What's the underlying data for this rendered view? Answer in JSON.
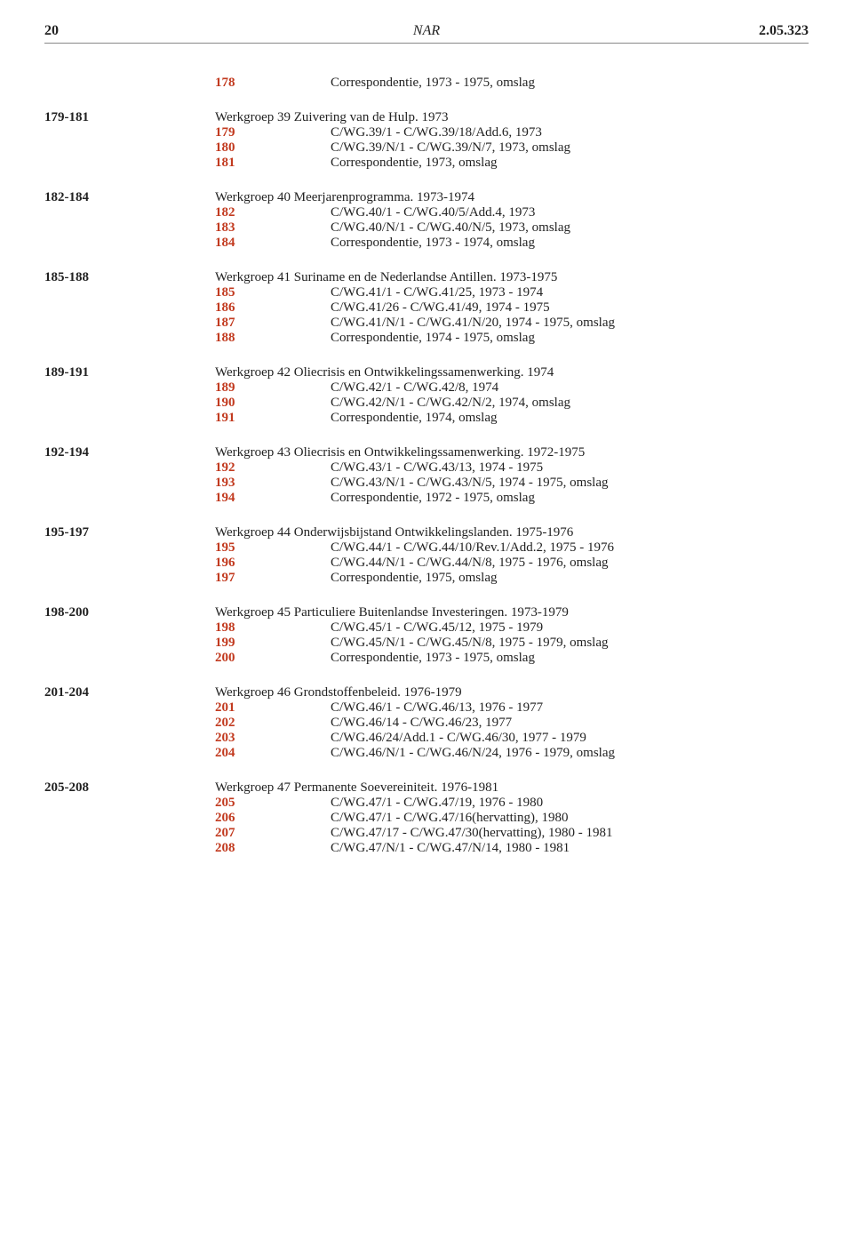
{
  "header": {
    "page_number": "20",
    "center": "NAR",
    "code": "2.05.323"
  },
  "standalone": {
    "num": "178",
    "desc": "Correspondentie, 1973 - 1975, omslag"
  },
  "groups": [
    {
      "range": "179-181",
      "title": "Werkgroep 39 Zuivering van de Hulp. 1973",
      "items": [
        {
          "num": "179",
          "desc": "C/WG.39/1 - C/WG.39/18/Add.6, 1973"
        },
        {
          "num": "180",
          "desc": "C/WG.39/N/1 - C/WG.39/N/7, 1973, omslag"
        },
        {
          "num": "181",
          "desc": "Correspondentie, 1973, omslag"
        }
      ]
    },
    {
      "range": "182-184",
      "title": "Werkgroep 40 Meerjarenprogramma. 1973-1974",
      "items": [
        {
          "num": "182",
          "desc": "C/WG.40/1 - C/WG.40/5/Add.4, 1973"
        },
        {
          "num": "183",
          "desc": "C/WG.40/N/1 - C/WG.40/N/5, 1973, omslag"
        },
        {
          "num": "184",
          "desc": "Correspondentie, 1973 - 1974, omslag"
        }
      ]
    },
    {
      "range": "185-188",
      "title": "Werkgroep 41 Suriname en de Nederlandse Antillen. 1973-1975",
      "items": [
        {
          "num": "185",
          "desc": "C/WG.41/1 - C/WG.41/25, 1973 - 1974"
        },
        {
          "num": "186",
          "desc": "C/WG.41/26 - C/WG.41/49, 1974 - 1975"
        },
        {
          "num": "187",
          "desc": "C/WG.41/N/1 - C/WG.41/N/20, 1974 - 1975, omslag"
        },
        {
          "num": "188",
          "desc": "Correspondentie, 1974 - 1975, omslag"
        }
      ]
    },
    {
      "range": "189-191",
      "title": "Werkgroep 42 Oliecrisis en Ontwikkelingssamenwerking. 1974",
      "items": [
        {
          "num": "189",
          "desc": "C/WG.42/1 - C/WG.42/8, 1974"
        },
        {
          "num": "190",
          "desc": "C/WG.42/N/1 - C/WG.42/N/2, 1974, omslag"
        },
        {
          "num": "191",
          "desc": "Correspondentie, 1974, omslag"
        }
      ]
    },
    {
      "range": "192-194",
      "title": "Werkgroep 43 Oliecrisis en Ontwikkelingssamenwerking. 1972-1975",
      "items": [
        {
          "num": "192",
          "desc": "C/WG.43/1 - C/WG.43/13, 1974 - 1975"
        },
        {
          "num": "193",
          "desc": "C/WG.43/N/1 - C/WG.43/N/5, 1974 - 1975, omslag"
        },
        {
          "num": "194",
          "desc": "Correspondentie, 1972 - 1975, omslag"
        }
      ]
    },
    {
      "range": "195-197",
      "title": "Werkgroep 44 Onderwijsbijstand Ontwikkelingslanden. 1975-1976",
      "items": [
        {
          "num": "195",
          "desc": "C/WG.44/1 - C/WG.44/10/Rev.1/Add.2, 1975 - 1976"
        },
        {
          "num": "196",
          "desc": "C/WG.44/N/1 - C/WG.44/N/8, 1975 - 1976, omslag"
        },
        {
          "num": "197",
          "desc": "Correspondentie, 1975, omslag"
        }
      ]
    },
    {
      "range": "198-200",
      "title": "Werkgroep 45 Particuliere Buitenlandse Investeringen. 1973-1979",
      "items": [
        {
          "num": "198",
          "desc": "C/WG.45/1 - C/WG.45/12, 1975 - 1979"
        },
        {
          "num": "199",
          "desc": "C/WG.45/N/1 - C/WG.45/N/8, 1975 - 1979, omslag"
        },
        {
          "num": "200",
          "desc": "Correspondentie, 1973 - 1975, omslag"
        }
      ]
    },
    {
      "range": "201-204",
      "title": "Werkgroep 46 Grondstoffenbeleid. 1976-1979",
      "items": [
        {
          "num": "201",
          "desc": "C/WG.46/1 - C/WG.46/13, 1976 - 1977"
        },
        {
          "num": "202",
          "desc": "C/WG.46/14 - C/WG.46/23, 1977"
        },
        {
          "num": "203",
          "desc": "C/WG.46/24/Add.1 - C/WG.46/30, 1977 - 1979"
        },
        {
          "num": "204",
          "desc": "C/WG.46/N/1 - C/WG.46/N/24, 1976 - 1979, omslag"
        }
      ]
    },
    {
      "range": "205-208",
      "title": "Werkgroep 47 Permanente Soevereiniteit. 1976-1981",
      "items": [
        {
          "num": "205",
          "desc": "C/WG.47/1 - C/WG.47/19, 1976 - 1980"
        },
        {
          "num": "206",
          "desc": "C/WG.47/1 - C/WG.47/16(hervatting), 1980"
        },
        {
          "num": "207",
          "desc": "C/WG.47/17 - C/WG.47/30(hervatting), 1980 - 1981"
        },
        {
          "num": "208",
          "desc": "C/WG.47/N/1 - C/WG.47/N/14, 1980 - 1981"
        }
      ]
    }
  ]
}
